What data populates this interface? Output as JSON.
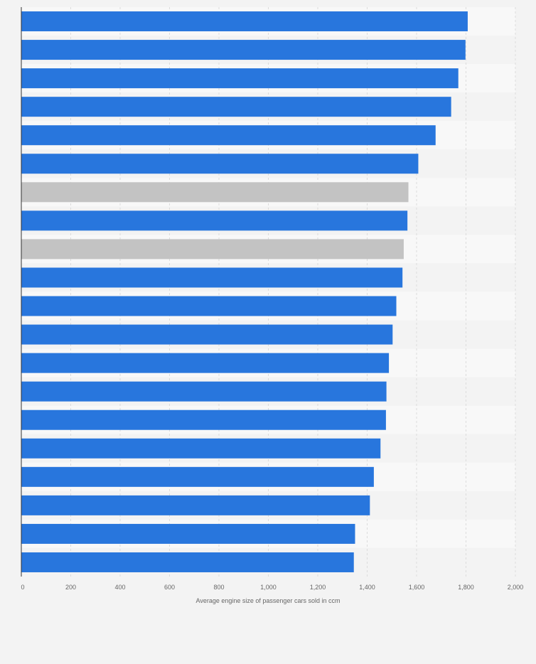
{
  "chart_data": {
    "type": "bar",
    "orientation": "horizontal",
    "xlabel": "Average engine size of passenger cars sold in ccm",
    "xlim": [
      0,
      2000
    ],
    "xticks": [
      0,
      200,
      400,
      600,
      800,
      1000,
      1200,
      1400,
      1600,
      1800,
      2000
    ],
    "xtick_labels": [
      "0",
      "200",
      "400",
      "600",
      "800",
      "1,000",
      "1,200",
      "1,400",
      "1,600",
      "1,800",
      "2,000"
    ],
    "values": [
      1807,
      1798,
      1769,
      1740,
      1677,
      1607,
      1567,
      1563,
      1548,
      1543,
      1518,
      1503,
      1488,
      1478,
      1476,
      1454,
      1427,
      1411,
      1351,
      1346
    ],
    "highlighted_indices": [
      6,
      8
    ],
    "grid": true,
    "colors": {
      "bar": "#2876dd",
      "bar_highlight": "#c3c3c3",
      "background": "#f3f3f3",
      "band_light": "#f8f8f8",
      "band_dark": "#f3f3f3",
      "grid": "#dcdcdc",
      "axis": "#333333",
      "tick_text": "#666666"
    }
  }
}
